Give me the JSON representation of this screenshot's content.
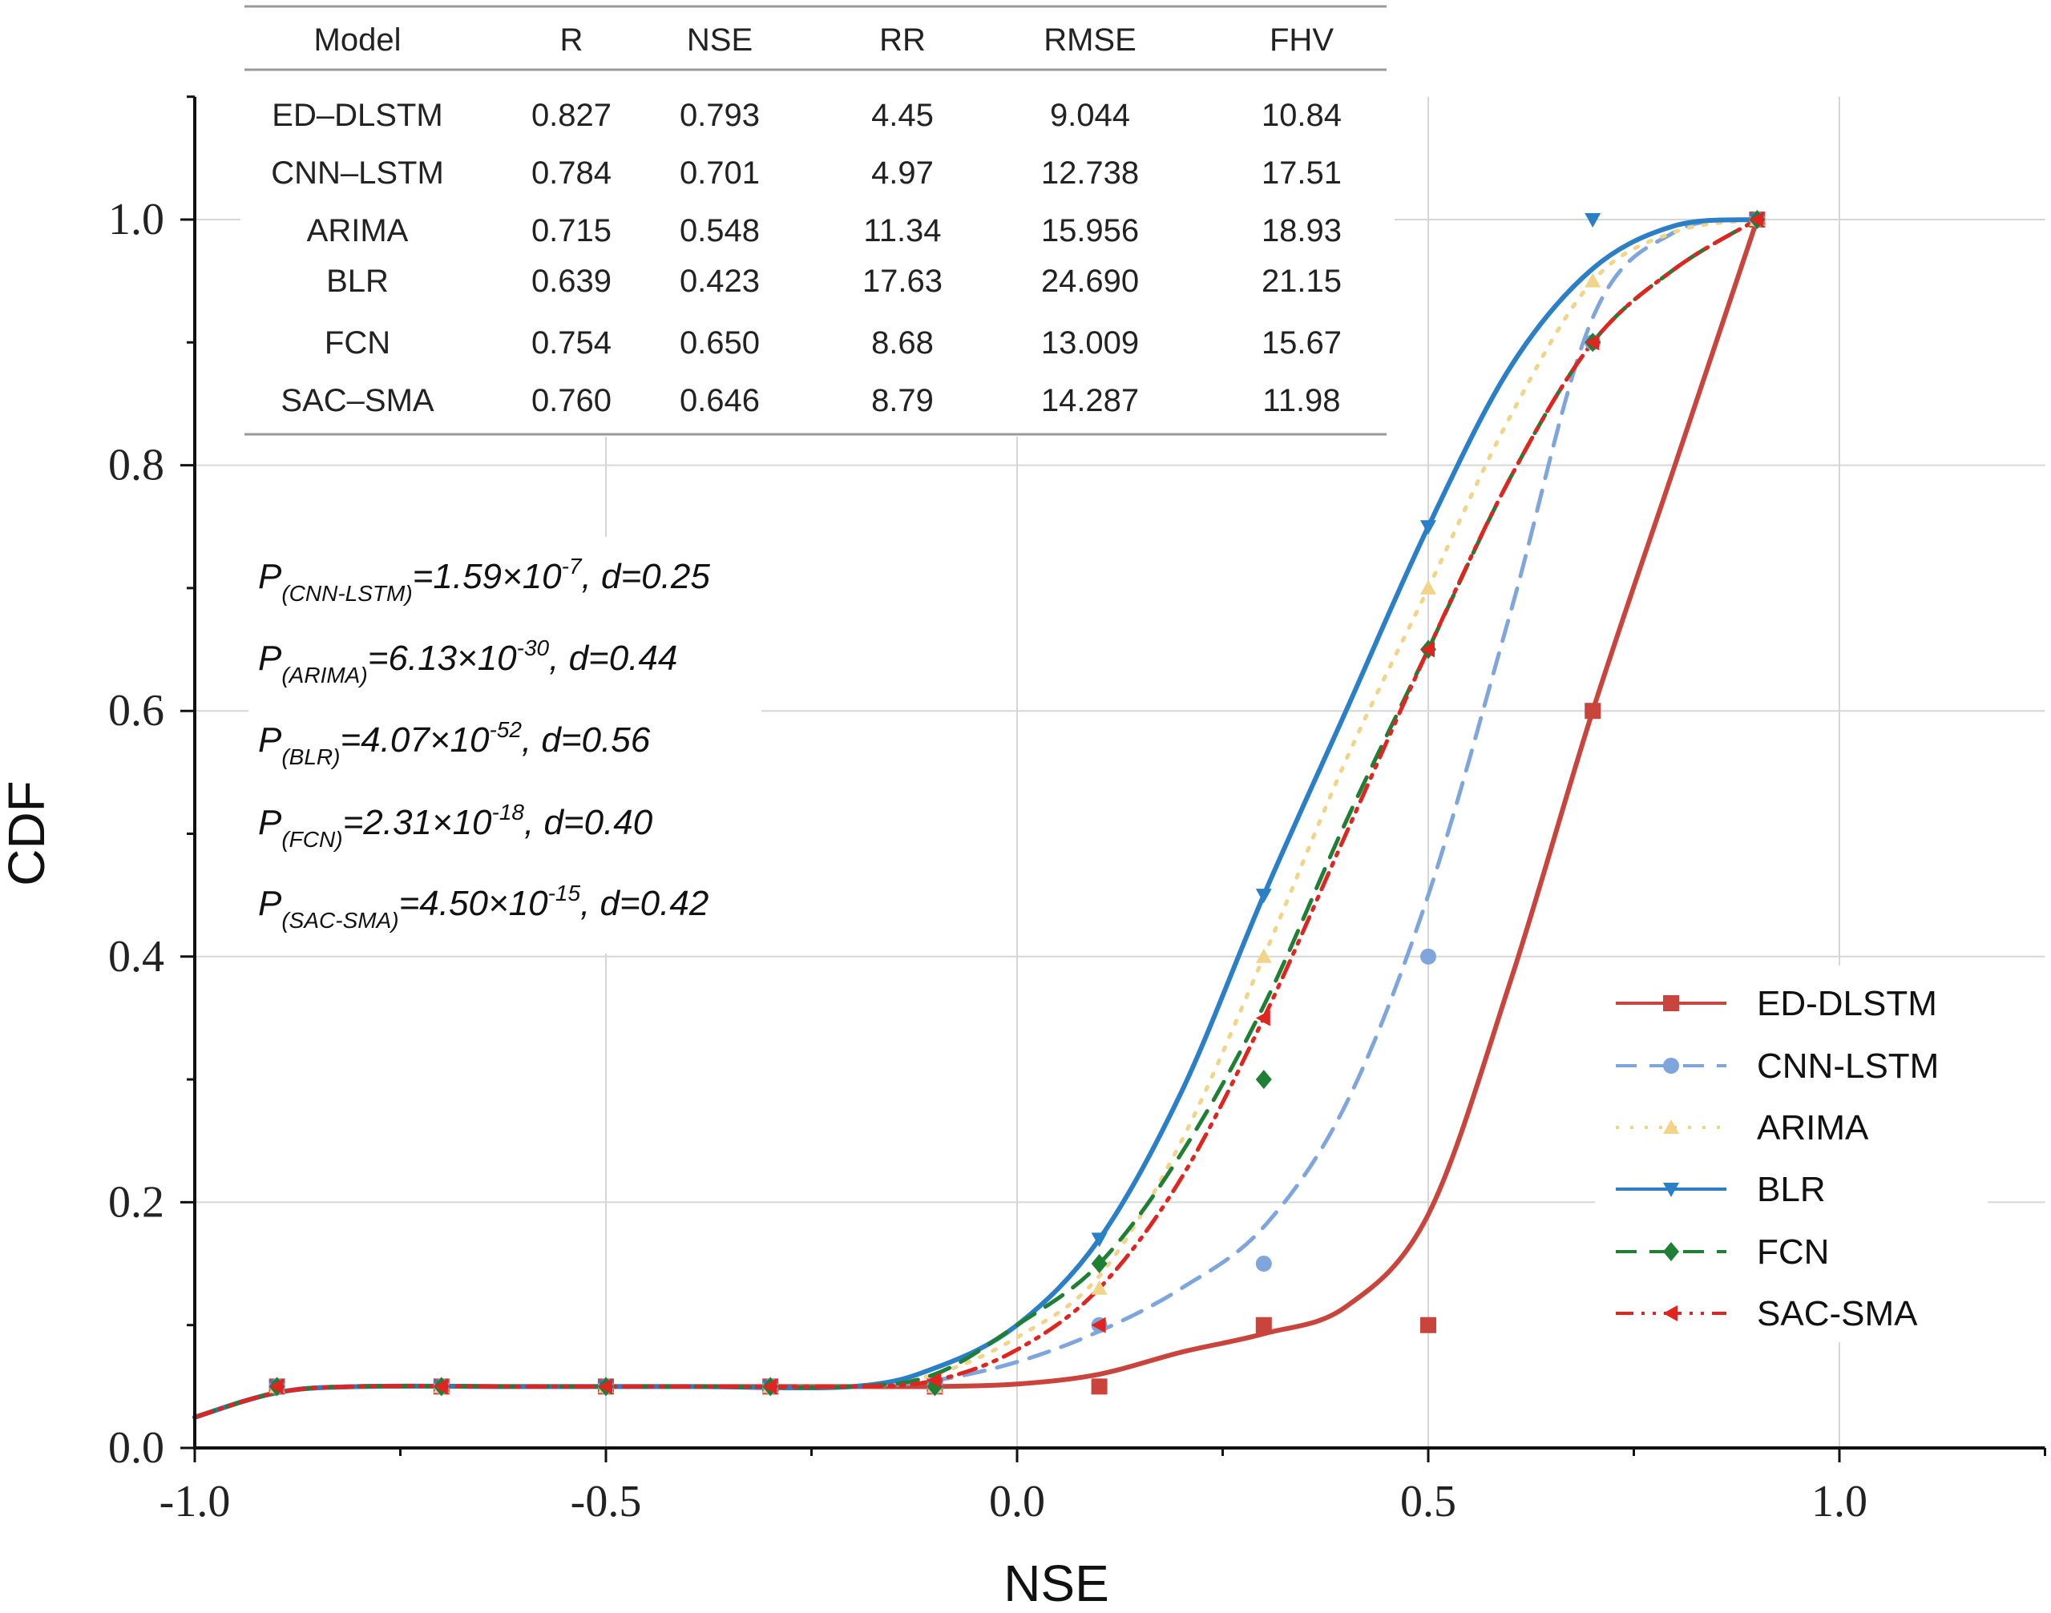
{
  "chart_data": {
    "type": "line",
    "xlabel": "NSE",
    "ylabel": "CDF",
    "xlim": [
      -1.0,
      1.25
    ],
    "ylim": [
      0.0,
      1.1
    ],
    "xticks": [
      "-1.0",
      "-0.5",
      "0.0",
      "0.5",
      "1.0"
    ],
    "yticks": [
      "0.0",
      "0.2",
      "0.4",
      "0.6",
      "0.8",
      "1.0"
    ],
    "grid": true,
    "legend_position": "bottom-right",
    "marker_x": [
      -0.9,
      -0.7,
      -0.5,
      -0.3,
      -0.1,
      0.1,
      0.3,
      0.5,
      0.7,
      0.9
    ],
    "curve_x": [
      -1.0,
      -0.9,
      -0.8,
      -0.6,
      -0.4,
      -0.2,
      -0.1,
      0.0,
      0.1,
      0.2,
      0.3,
      0.4,
      0.5,
      0.6,
      0.7,
      0.8,
      0.9
    ],
    "series": [
      {
        "name": "ED-DLSTM",
        "color": "#c8443c",
        "dash": "solid",
        "marker": "square",
        "markers": [
          0.05,
          0.05,
          0.05,
          0.05,
          0.05,
          0.05,
          0.1,
          0.1,
          0.6,
          1.0
        ],
        "curve": [
          0.025,
          0.045,
          0.05,
          0.05,
          0.05,
          0.05,
          0.05,
          0.052,
          0.06,
          0.078,
          0.093,
          0.115,
          0.19,
          0.38,
          0.6,
          0.8,
          1.0
        ]
      },
      {
        "name": "CNN-LSTM",
        "color": "#7fa6dc",
        "dash": "dashed",
        "marker": "circle",
        "markers": [
          0.05,
          0.05,
          0.05,
          0.05,
          0.05,
          0.1,
          0.15,
          0.4,
          0.9,
          1.0
        ],
        "curve": [
          0.025,
          0.045,
          0.05,
          0.05,
          0.05,
          0.05,
          0.055,
          0.07,
          0.095,
          0.13,
          0.18,
          0.28,
          0.45,
          0.68,
          0.92,
          0.99,
          1.0
        ]
      },
      {
        "name": "ARIMA",
        "color": "#f1d488",
        "dash": "dotted",
        "marker": "triangle-up",
        "markers": [
          0.05,
          0.05,
          0.05,
          0.05,
          0.05,
          0.13,
          0.4,
          0.7,
          0.95,
          1.0
        ],
        "curve": [
          0.025,
          0.045,
          0.05,
          0.05,
          0.05,
          0.05,
          0.06,
          0.09,
          0.14,
          0.25,
          0.4,
          0.56,
          0.7,
          0.84,
          0.95,
          0.99,
          1.0
        ]
      },
      {
        "name": "BLR",
        "color": "#2a7fc7",
        "dash": "solid",
        "marker": "triangle-down",
        "markers": [
          0.05,
          0.05,
          0.05,
          0.05,
          0.05,
          0.17,
          0.45,
          0.75,
          1.0,
          1.0
        ],
        "curve": [
          0.025,
          0.045,
          0.05,
          0.05,
          0.05,
          0.05,
          0.065,
          0.1,
          0.17,
          0.29,
          0.45,
          0.6,
          0.75,
          0.88,
          0.96,
          0.995,
          1.0
        ]
      },
      {
        "name": "FCN",
        "color": "#1f7f35",
        "dash": "dashed",
        "marker": "diamond",
        "markers": [
          0.05,
          0.05,
          0.05,
          0.05,
          0.05,
          0.15,
          0.3,
          0.65,
          0.9,
          1.0
        ],
        "curve": [
          0.025,
          0.045,
          0.05,
          0.05,
          0.05,
          0.05,
          0.06,
          0.1,
          0.15,
          0.24,
          0.36,
          0.51,
          0.65,
          0.79,
          0.9,
          0.96,
          1.0
        ]
      },
      {
        "name": "SAC-SMA",
        "color": "#e0241f",
        "dash": "dashdotdot",
        "marker": "triangle-left",
        "markers": [
          0.05,
          0.05,
          0.05,
          0.05,
          0.055,
          0.1,
          0.35,
          0.65,
          0.9,
          1.0
        ],
        "curve": [
          0.025,
          0.045,
          0.05,
          0.05,
          0.05,
          0.05,
          0.055,
          0.08,
          0.13,
          0.22,
          0.35,
          0.5,
          0.65,
          0.79,
          0.9,
          0.96,
          1.0
        ]
      }
    ],
    "table": {
      "headers": [
        "Model",
        "R",
        "NSE",
        "RR",
        "RMSE",
        "FHV"
      ],
      "rows": [
        [
          "ED–DLSTM",
          "0.827",
          "0.793",
          "4.45",
          "9.044",
          "10.84"
        ],
        [
          "CNN–LSTM",
          "0.784",
          "0.701",
          "4.97",
          "12.738",
          "17.51"
        ],
        [
          "ARIMA",
          "0.715",
          "0.548",
          "11.34",
          "15.956",
          "18.93"
        ],
        [
          "BLR",
          "0.639",
          "0.423",
          "17.63",
          "24.690",
          "21.15"
        ],
        [
          "FCN",
          "0.754",
          "0.650",
          "8.68",
          "13.009",
          "15.67"
        ],
        [
          "SAC–SMA",
          "0.760",
          "0.646",
          "8.79",
          "14.287",
          "11.98"
        ]
      ]
    },
    "annotations": [
      {
        "p": "P",
        "sub": "(CNN-LSTM)",
        "base": "=1.59×10",
        "exp": "-7",
        "rest": ", d=0.25"
      },
      {
        "p": "P",
        "sub": "(ARIMA)",
        "base": "=6.13×10",
        "exp": "-30",
        "rest": ", d=0.44"
      },
      {
        "p": "P",
        "sub": "(BLR)",
        "base": "=4.07×10",
        "exp": "-52",
        "rest": ", d=0.56"
      },
      {
        "p": "P",
        "sub": "(FCN)",
        "base": "=2.31×10",
        "exp": "-18",
        "rest": ", d=0.40"
      },
      {
        "p": "P",
        "sub": "(SAC-SMA)",
        "base": "=4.50×10",
        "exp": "-15",
        "rest": ", d=0.42"
      }
    ]
  }
}
